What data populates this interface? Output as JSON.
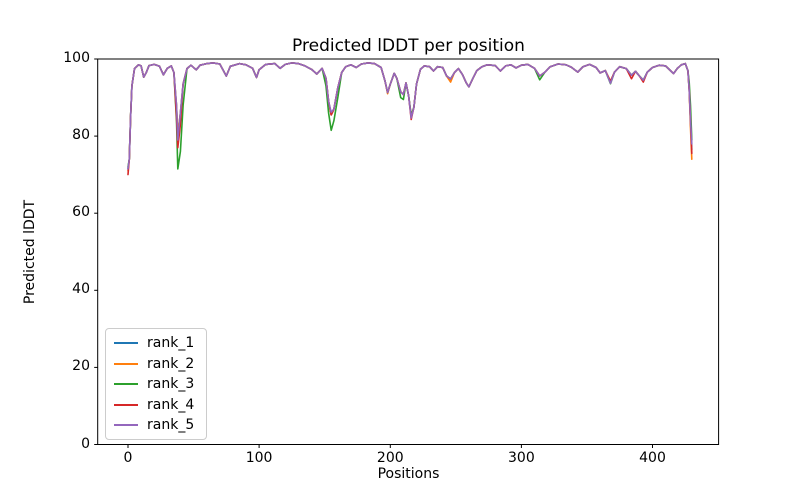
{
  "chart_data": {
    "type": "line",
    "title": "Predicted lDDT per position",
    "xlabel": "Positions",
    "ylabel": "Predicted lDDT",
    "xlim": [
      -23.1,
      450.4
    ],
    "ylim": [
      0,
      100
    ],
    "xticks": [
      0,
      100,
      200,
      300,
      400
    ],
    "yticks": [
      0,
      20,
      40,
      60,
      80,
      100
    ],
    "grid": false,
    "legend_position": "lower left",
    "axis_color": "#000000",
    "background_color": "#ffffff",
    "x": [
      0,
      1,
      2,
      3,
      5,
      8,
      10,
      12,
      14,
      16,
      20,
      24,
      27,
      30,
      33,
      35,
      37,
      38,
      40,
      42,
      45,
      48,
      52,
      55,
      60,
      65,
      70,
      75,
      78,
      85,
      90,
      95,
      98,
      100,
      105,
      112,
      116,
      120,
      125,
      130,
      135,
      140,
      144,
      148,
      151,
      153,
      155,
      157,
      160,
      163,
      166,
      170,
      174,
      178,
      183,
      188,
      193,
      196,
      198,
      200,
      203,
      205,
      208,
      210,
      212,
      214,
      216,
      218,
      220,
      223,
      226,
      230,
      233,
      236,
      240,
      243,
      246,
      249,
      252,
      255,
      258,
      260,
      263,
      266,
      270,
      274,
      280,
      284,
      288,
      292,
      296,
      300,
      305,
      310,
      314,
      318,
      322,
      328,
      334,
      338,
      343,
      347,
      352,
      357,
      360,
      364,
      368,
      371,
      375,
      380,
      384,
      387,
      390,
      393,
      396,
      400,
      405,
      410,
      414,
      416,
      419,
      422,
      425,
      427,
      428,
      429,
      430
    ],
    "series": [
      {
        "name": "rank_1",
        "color": "#1f77b4",
        "values": [
          71.5,
          74,
          85,
          93,
          97.5,
          98.5,
          98.2,
          95.3,
          96.5,
          98.3,
          98.6,
          98.1,
          95.9,
          97.6,
          98.2,
          96.5,
          88,
          80.5,
          86,
          93.5,
          97.5,
          98.4,
          97.2,
          98.4,
          98.8,
          99,
          98.7,
          95.6,
          98.1,
          98.8,
          98.5,
          97.6,
          95.2,
          97.2,
          98.6,
          98.8,
          97.6,
          98.6,
          99,
          98.8,
          98.2,
          97.3,
          96.1,
          97.6,
          95,
          89,
          85.5,
          87,
          92.5,
          96.5,
          98,
          98.5,
          97.8,
          98.7,
          99,
          98.8,
          97.8,
          94.3,
          91.3,
          93.5,
          96.3,
          95,
          91.5,
          90.8,
          93.8,
          90.5,
          85.3,
          87.5,
          93.5,
          97.3,
          98.2,
          98,
          96.9,
          98,
          97.8,
          95.6,
          94.8,
          96.5,
          97.5,
          96,
          93.8,
          92.8,
          95,
          97,
          98,
          98.5,
          98.3,
          96.9,
          98.2,
          98.5,
          97.7,
          98.4,
          98.6,
          97.6,
          95.6,
          96.6,
          98,
          98.7,
          98.5,
          97.9,
          96.6,
          98,
          98.6,
          97.8,
          96.4,
          97,
          94.2,
          96.6,
          98,
          97.5,
          95.8,
          96.8,
          95.6,
          94.5,
          96.6,
          97.8,
          98.4,
          98.2,
          96.9,
          96.2,
          97.6,
          98.5,
          98.8,
          97,
          92,
          84,
          76.5
        ]
      },
      {
        "name": "rank_2",
        "color": "#ff7f0e",
        "values": [
          71,
          74,
          85,
          93,
          97.5,
          98.5,
          98.2,
          95.3,
          96.5,
          98.3,
          98.6,
          98.1,
          95.9,
          97.6,
          98.2,
          96.5,
          88,
          80.5,
          86,
          93.5,
          97.5,
          98.4,
          97.2,
          98.4,
          98.8,
          99,
          98.7,
          95.6,
          98.1,
          98.8,
          98.5,
          97.6,
          95.2,
          97.2,
          98.6,
          98.8,
          97.6,
          98.6,
          99,
          98.8,
          98.2,
          97.3,
          96.1,
          97.6,
          95,
          89,
          85.5,
          87,
          92.5,
          96.5,
          98,
          98.5,
          97.8,
          98.7,
          99,
          98.8,
          97.8,
          94.3,
          91,
          93.5,
          96.3,
          95,
          91.5,
          90.8,
          93.8,
          90.5,
          85.3,
          87.5,
          93.5,
          97.3,
          98.2,
          98,
          96.9,
          98,
          97.8,
          95.6,
          94,
          96.5,
          97.5,
          96,
          93.8,
          92.8,
          95,
          97,
          98,
          98.5,
          98.3,
          96.9,
          98.2,
          98.5,
          97.7,
          98.4,
          98.6,
          97.6,
          95.6,
          96.6,
          98,
          98.7,
          98.5,
          97.9,
          96.6,
          98,
          98.6,
          97.8,
          96.4,
          97,
          94.2,
          96.6,
          98,
          97.5,
          95.8,
          96.8,
          95.6,
          94.5,
          96.6,
          97.8,
          98.4,
          98.2,
          96.9,
          96.2,
          97.6,
          98.5,
          98.8,
          97,
          92,
          82,
          74
        ]
      },
      {
        "name": "rank_3",
        "color": "#2ca02c",
        "values": [
          72,
          74,
          85,
          93,
          97.5,
          98.5,
          98.2,
          95.3,
          96.5,
          98.3,
          98.6,
          98.1,
          95.9,
          97.6,
          98.2,
          96.5,
          84,
          71.5,
          76,
          88,
          97.5,
          98.4,
          97.2,
          98.4,
          98.8,
          99,
          98.7,
          95.6,
          98.1,
          98.8,
          98.5,
          97.6,
          95.2,
          97.2,
          98.6,
          98.8,
          97.6,
          98.6,
          99,
          98.8,
          98.2,
          97.3,
          96.1,
          97.6,
          93,
          86,
          81.5,
          84,
          90,
          96.5,
          98,
          98.5,
          97.8,
          98.7,
          99,
          98.8,
          97.8,
          94.3,
          91.3,
          93.5,
          96.3,
          95,
          90,
          89.5,
          93.8,
          90.5,
          85.3,
          87.5,
          93.5,
          97.3,
          98.2,
          98,
          96.9,
          98,
          97.8,
          95.6,
          94.8,
          96.5,
          97.5,
          96,
          93.8,
          92.8,
          95,
          97,
          98,
          98.5,
          98.3,
          96.9,
          98.2,
          98.5,
          97.7,
          98.4,
          98.6,
          97.6,
          94.6,
          96.6,
          98,
          98.7,
          98.5,
          97.9,
          96.6,
          98,
          98.6,
          97.8,
          96.4,
          97,
          93.6,
          96.6,
          98,
          97.5,
          95.8,
          96.8,
          95.6,
          94.5,
          96.6,
          97.8,
          98.4,
          98.2,
          96.9,
          96.2,
          97.6,
          98.5,
          98.8,
          97,
          94,
          88,
          79
        ]
      },
      {
        "name": "rank_4",
        "color": "#d62728",
        "values": [
          70,
          74,
          85,
          93,
          97.5,
          98.5,
          98.2,
          95.3,
          96.5,
          98.3,
          98.6,
          98.1,
          95.9,
          97.6,
          98.2,
          96.5,
          85,
          77,
          83,
          93.5,
          97.5,
          98.4,
          97.2,
          98.4,
          98.8,
          99,
          98.7,
          95.6,
          98.1,
          98.8,
          98.5,
          97.6,
          95.2,
          97.2,
          98.6,
          98.8,
          97.6,
          98.6,
          99,
          98.8,
          98.2,
          97.3,
          96.1,
          97.6,
          95,
          89,
          85.5,
          87,
          92.5,
          96.5,
          98,
          98.5,
          97.8,
          98.7,
          99,
          98.8,
          97.8,
          94.3,
          91.3,
          93.5,
          96.3,
          95,
          91.5,
          90.8,
          93.8,
          90.5,
          84.3,
          87.5,
          93.5,
          97.3,
          98.2,
          98,
          96.9,
          98,
          97.8,
          95.6,
          94.8,
          96.5,
          97.5,
          96,
          93.8,
          92.8,
          95,
          97,
          98,
          98.5,
          98.3,
          96.9,
          98.2,
          98.5,
          97.7,
          98.4,
          98.6,
          97.6,
          95.6,
          96.6,
          98,
          98.7,
          98.5,
          97.9,
          96.6,
          98,
          98.6,
          97.8,
          96.4,
          97,
          94.2,
          96.6,
          98,
          97.5,
          94.9,
          96.8,
          95.6,
          94,
          96.6,
          97.8,
          98.4,
          98.2,
          96.9,
          96.2,
          97.6,
          98.5,
          98.8,
          97,
          92,
          84,
          75.5
        ]
      },
      {
        "name": "rank_5",
        "color": "#9467bd",
        "values": [
          71.5,
          74,
          85,
          93,
          97.5,
          98.5,
          98.2,
          95.3,
          96.5,
          98.3,
          98.6,
          98.1,
          95.9,
          97.6,
          98.2,
          96.5,
          88,
          79,
          86,
          93.5,
          97.5,
          98.4,
          97.2,
          98.4,
          98.8,
          99,
          98.7,
          95.6,
          98.1,
          98.8,
          98.5,
          97.6,
          95.2,
          97.2,
          98.6,
          98.8,
          97.6,
          98.6,
          99,
          98.8,
          98.2,
          97.3,
          96.1,
          97.6,
          95,
          89,
          86.2,
          87,
          92.5,
          96.5,
          98,
          98.5,
          97.8,
          98.7,
          99,
          98.8,
          97.8,
          94.3,
          91.3,
          93.5,
          96.3,
          95,
          91.5,
          90.8,
          93.8,
          90.5,
          84.7,
          87.5,
          93.5,
          97.3,
          98.2,
          98,
          96.9,
          98,
          97.8,
          95.6,
          94.8,
          96.5,
          97.5,
          96,
          93.8,
          92.8,
          95,
          97,
          98,
          98.5,
          98.3,
          96.9,
          98.2,
          98.5,
          97.7,
          98.4,
          98.6,
          97.6,
          95.6,
          96.6,
          98,
          98.7,
          98.5,
          97.9,
          96.6,
          98,
          98.6,
          97.8,
          96.4,
          97,
          93.7,
          96.6,
          98,
          97.5,
          95.8,
          96.8,
          95.6,
          94.5,
          96.6,
          97.8,
          98.4,
          98.2,
          96.9,
          96.2,
          97.6,
          98.5,
          98.8,
          97,
          92,
          84,
          78
        ]
      }
    ]
  }
}
